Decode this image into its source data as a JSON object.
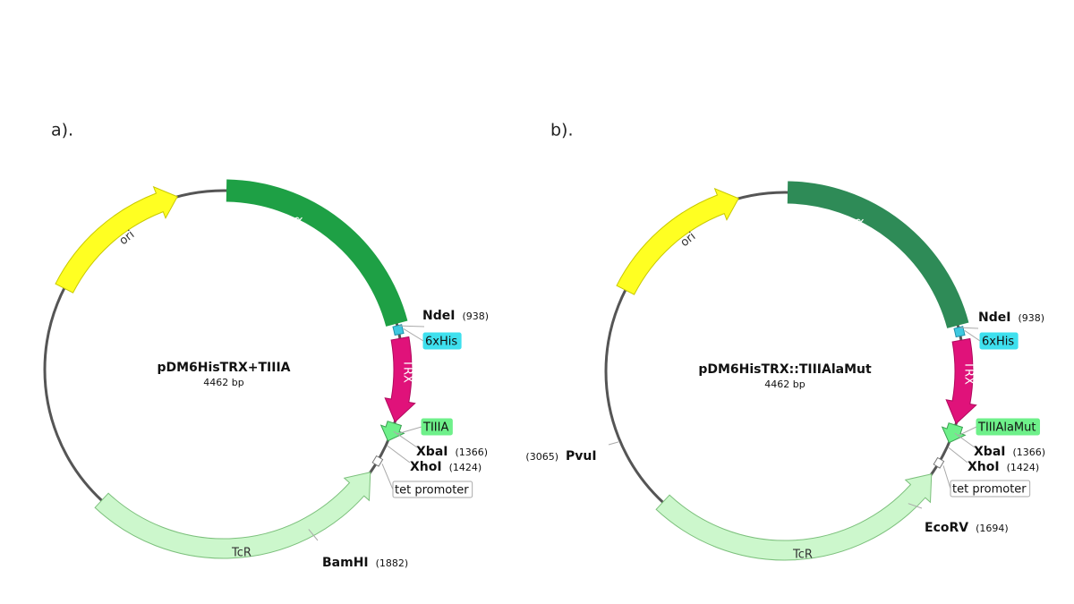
{
  "panels": [
    {
      "label": "a).",
      "name": "pDM6HisTRX+TIIIA",
      "size": "4462 bp",
      "features": [
        {
          "label": "deoP1P2"
        },
        {
          "label": "6xHis"
        },
        {
          "label": "TRX"
        },
        {
          "label": "TIIIA"
        },
        {
          "label": "tet promoter"
        },
        {
          "label": "TcR"
        },
        {
          "label": "ori"
        }
      ],
      "sites": [
        {
          "name": "NdeI",
          "position": "(938)"
        },
        {
          "name": "XbaI",
          "position": "(1366)"
        },
        {
          "name": "XhoI",
          "position": "(1424)"
        },
        {
          "name": "BamHI",
          "position": "(1882)"
        }
      ]
    },
    {
      "label": "b).",
      "name": "pDM6HisTRX::TIIIAlaMut",
      "size": "4462 bp",
      "features": [
        {
          "label": "deoP1P2"
        },
        {
          "label": "6xHis"
        },
        {
          "label": "TRX"
        },
        {
          "label": "TIIIAlaMut"
        },
        {
          "label": "tet promoter"
        },
        {
          "label": "TcR"
        },
        {
          "label": "ori"
        }
      ],
      "sites": [
        {
          "name": "NdeI",
          "position": "(938)"
        },
        {
          "name": "XbaI",
          "position": "(1366)"
        },
        {
          "name": "XhoI",
          "position": "(1424)"
        },
        {
          "name": "EcoRV",
          "position": "(1694)"
        },
        {
          "name": "PvuI",
          "position": "(3065)"
        }
      ]
    }
  ]
}
